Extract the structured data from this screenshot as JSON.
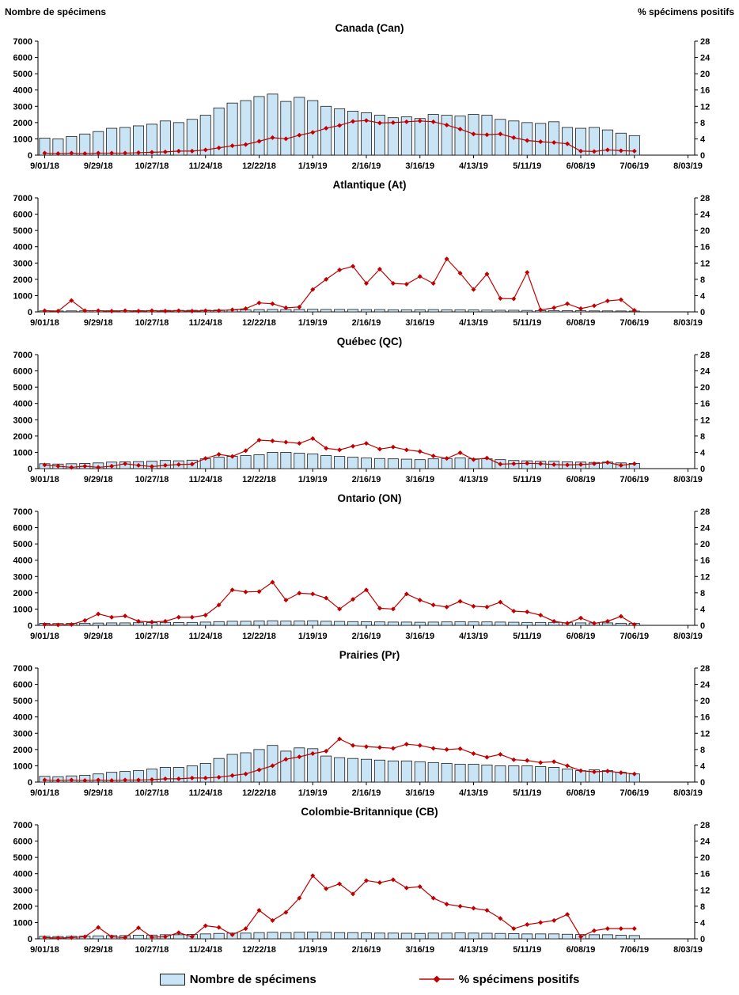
{
  "colors": {
    "bar_fill": "#c9e4f5",
    "bar_stroke": "#1a1a1a",
    "line": "#c00000"
  },
  "chart_data": {
    "type": "bar",
    "subtype": "combo bars (left axis) + line with diamond markers (right axis), 6 stacked panels",
    "left_axis_title": "Nombre de spécimens",
    "right_axis_title": "% spécimens positifs",
    "legend_bars": "Nombre de spécimens",
    "legend_line": "% spécimens positifs",
    "ylim_left": [
      0,
      7000
    ],
    "ylim_right": [
      0,
      28
    ],
    "left_ticks": [
      0,
      1000,
      2000,
      3000,
      4000,
      5000,
      6000,
      7000
    ],
    "right_ticks": [
      0,
      4,
      8,
      12,
      16,
      20,
      24,
      28
    ],
    "x_axis_tick_labels": [
      "9/01/18",
      "9/29/18",
      "10/27/18",
      "11/24/18",
      "12/22/18",
      "1/19/19",
      "2/16/19",
      "3/16/19",
      "4/13/19",
      "5/11/19",
      "6/08/19",
      "7/06/19",
      "8/03/19"
    ],
    "x": [
      "9/01/18",
      "9/08/18",
      "9/15/18",
      "9/22/18",
      "9/29/18",
      "10/06/18",
      "10/13/18",
      "10/20/18",
      "10/27/18",
      "11/03/18",
      "11/10/18",
      "11/17/18",
      "11/24/18",
      "12/01/18",
      "12/08/18",
      "12/15/18",
      "12/22/18",
      "12/29/18",
      "1/05/19",
      "1/12/19",
      "1/19/19",
      "1/26/19",
      "2/02/19",
      "2/09/19",
      "2/16/19",
      "2/23/19",
      "3/02/19",
      "3/09/19",
      "3/16/19",
      "3/23/19",
      "3/30/19",
      "4/06/19",
      "4/13/19",
      "4/20/19",
      "4/27/19",
      "5/04/19",
      "5/11/19",
      "5/18/19",
      "5/25/19",
      "6/01/19",
      "6/08/19",
      "6/15/19",
      "6/22/19",
      "6/29/19",
      "7/06/19"
    ],
    "panels": [
      {
        "title": "Canada (Can)",
        "specimens": [
          1050,
          1000,
          1150,
          1300,
          1450,
          1650,
          1700,
          1800,
          1900,
          2100,
          2000,
          2200,
          2450,
          2900,
          3200,
          3350,
          3600,
          3750,
          3300,
          3550,
          3350,
          3000,
          2850,
          2700,
          2600,
          2450,
          2300,
          2350,
          2250,
          2500,
          2450,
          2400,
          2500,
          2450,
          2200,
          2100,
          2000,
          1950,
          2050,
          1700,
          1650,
          1700,
          1550,
          1350,
          1200
        ],
        "pct_positifs": [
          0.5,
          0.4,
          0.5,
          0.4,
          0.5,
          0.5,
          0.5,
          0.6,
          0.7,
          0.8,
          1.0,
          1.0,
          1.3,
          1.8,
          2.3,
          2.6,
          3.4,
          4.3,
          4.0,
          4.9,
          5.6,
          6.6,
          7.3,
          8.3,
          8.5,
          7.9,
          8.0,
          8.2,
          8.4,
          8.2,
          7.4,
          6.4,
          5.2,
          5.0,
          5.2,
          4.3,
          3.6,
          3.3,
          3.1,
          2.8,
          1.0,
          0.9,
          1.3,
          1.1,
          1.0
        ]
      },
      {
        "title": "Atlantique (At)",
        "specimens": [
          60,
          55,
          60,
          65,
          70,
          70,
          75,
          80,
          85,
          90,
          90,
          95,
          100,
          110,
          120,
          130,
          140,
          150,
          140,
          150,
          160,
          150,
          150,
          150,
          140,
          140,
          130,
          130,
          130,
          140,
          130,
          130,
          120,
          110,
          100,
          100,
          90,
          80,
          80,
          70,
          70,
          60,
          60,
          55,
          50
        ],
        "pct_positifs": [
          0.3,
          0.2,
          2.8,
          0.3,
          0.3,
          0.2,
          0.3,
          0.2,
          0.3,
          0.2,
          0.3,
          0.2,
          0.3,
          0.3,
          0.5,
          0.8,
          2.2,
          2.0,
          1.0,
          1.2,
          5.5,
          8.0,
          10.3,
          11.2,
          7.0,
          10.5,
          7.0,
          6.8,
          8.7,
          7.0,
          13.0,
          9.5,
          5.5,
          9.3,
          3.3,
          3.2,
          9.7,
          0.5,
          1.0,
          2.0,
          0.8,
          1.5,
          2.7,
          3.0,
          0.4
        ]
      },
      {
        "title": "Québec (QC)",
        "specimens": [
          300,
          280,
          300,
          320,
          350,
          400,
          420,
          430,
          450,
          500,
          480,
          520,
          600,
          700,
          750,
          800,
          850,
          1000,
          1000,
          950,
          900,
          800,
          750,
          700,
          650,
          620,
          600,
          580,
          550,
          600,
          620,
          650,
          600,
          600,
          550,
          500,
          480,
          450,
          450,
          420,
          400,
          380,
          400,
          350,
          320
        ],
        "pct_positifs": [
          0.9,
          0.6,
          0.3,
          0.6,
          0.3,
          0.6,
          1.2,
          0.8,
          0.5,
          0.8,
          1.0,
          1.1,
          2.5,
          3.5,
          3.0,
          4.4,
          7.0,
          6.8,
          6.5,
          6.2,
          7.4,
          5.0,
          4.6,
          5.5,
          6.2,
          4.8,
          5.3,
          4.6,
          4.2,
          3.1,
          2.5,
          3.9,
          2.2,
          2.6,
          1.1,
          1.2,
          1.3,
          1.2,
          1.0,
          0.9,
          1.0,
          1.2,
          1.5,
          0.8,
          1.2
        ]
      },
      {
        "title": "Ontario (ON)",
        "specimens": [
          120,
          110,
          120,
          130,
          140,
          150,
          150,
          160,
          170,
          180,
          170,
          180,
          200,
          230,
          250,
          250,
          270,
          280,
          260,
          270,
          280,
          250,
          240,
          230,
          220,
          210,
          200,
          200,
          190,
          200,
          210,
          220,
          210,
          210,
          200,
          190,
          180,
          180,
          180,
          160,
          150,
          150,
          150,
          130,
          120
        ],
        "pct_positifs": [
          0.2,
          0.1,
          0.2,
          1.2,
          2.8,
          2.0,
          2.3,
          1.0,
          0.8,
          1.0,
          2.0,
          2.0,
          2.5,
          5.0,
          8.7,
          8.2,
          8.3,
          10.6,
          6.2,
          7.9,
          7.7,
          6.7,
          4.0,
          6.4,
          8.7,
          4.2,
          4.0,
          7.7,
          6.2,
          5.0,
          4.5,
          5.9,
          4.7,
          4.5,
          5.7,
          3.5,
          3.3,
          2.5,
          1.0,
          0.5,
          1.8,
          0.5,
          1.0,
          2.2,
          0.2
        ]
      },
      {
        "title": "Prairies (Pr)",
        "specimens": [
          350,
          330,
          380,
          420,
          500,
          600,
          650,
          700,
          800,
          900,
          900,
          1000,
          1150,
          1450,
          1700,
          1800,
          2000,
          2250,
          1900,
          2100,
          2050,
          1600,
          1500,
          1450,
          1400,
          1350,
          1300,
          1300,
          1250,
          1200,
          1150,
          1100,
          1100,
          1050,
          1000,
          1000,
          1000,
          950,
          900,
          800,
          700,
          750,
          700,
          600,
          500
        ],
        "pct_positifs": [
          0.5,
          0.4,
          0.5,
          0.4,
          0.5,
          0.4,
          0.5,
          0.5,
          0.6,
          0.8,
          0.8,
          1.0,
          1.0,
          1.2,
          1.6,
          2.0,
          3.0,
          4.0,
          5.6,
          6.2,
          7.0,
          7.6,
          10.6,
          9.0,
          8.7,
          8.5,
          8.3,
          9.3,
          9.0,
          8.3,
          8.0,
          8.2,
          7.0,
          6.1,
          6.8,
          5.5,
          5.3,
          4.8,
          5.0,
          4.0,
          2.8,
          2.5,
          2.7,
          2.3,
          2.0
        ]
      },
      {
        "title": "Colombie-Britannique (CB)",
        "specimens": [
          150,
          140,
          150,
          160,
          180,
          200,
          200,
          220,
          230,
          250,
          250,
          270,
          300,
          330,
          350,
          350,
          380,
          400,
          380,
          400,
          420,
          400,
          380,
          380,
          360,
          350,
          350,
          340,
          330,
          350,
          350,
          360,
          350,
          340,
          330,
          320,
          300,
          300,
          300,
          280,
          260,
          250,
          250,
          220,
          200
        ],
        "pct_positifs": [
          0.3,
          0.2,
          0.3,
          0.5,
          2.8,
          0.5,
          0.3,
          2.7,
          0.4,
          0.5,
          1.5,
          0.5,
          3.2,
          2.8,
          1.0,
          2.5,
          7.0,
          4.5,
          6.5,
          10.0,
          15.5,
          12.3,
          13.5,
          11.0,
          14.3,
          13.8,
          14.5,
          12.5,
          12.8,
          10.0,
          8.5,
          8.0,
          7.5,
          7.0,
          5.0,
          2.5,
          3.5,
          4.0,
          4.5,
          6.0,
          0.5,
          2.0,
          2.5,
          2.5,
          2.5
        ]
      }
    ]
  }
}
